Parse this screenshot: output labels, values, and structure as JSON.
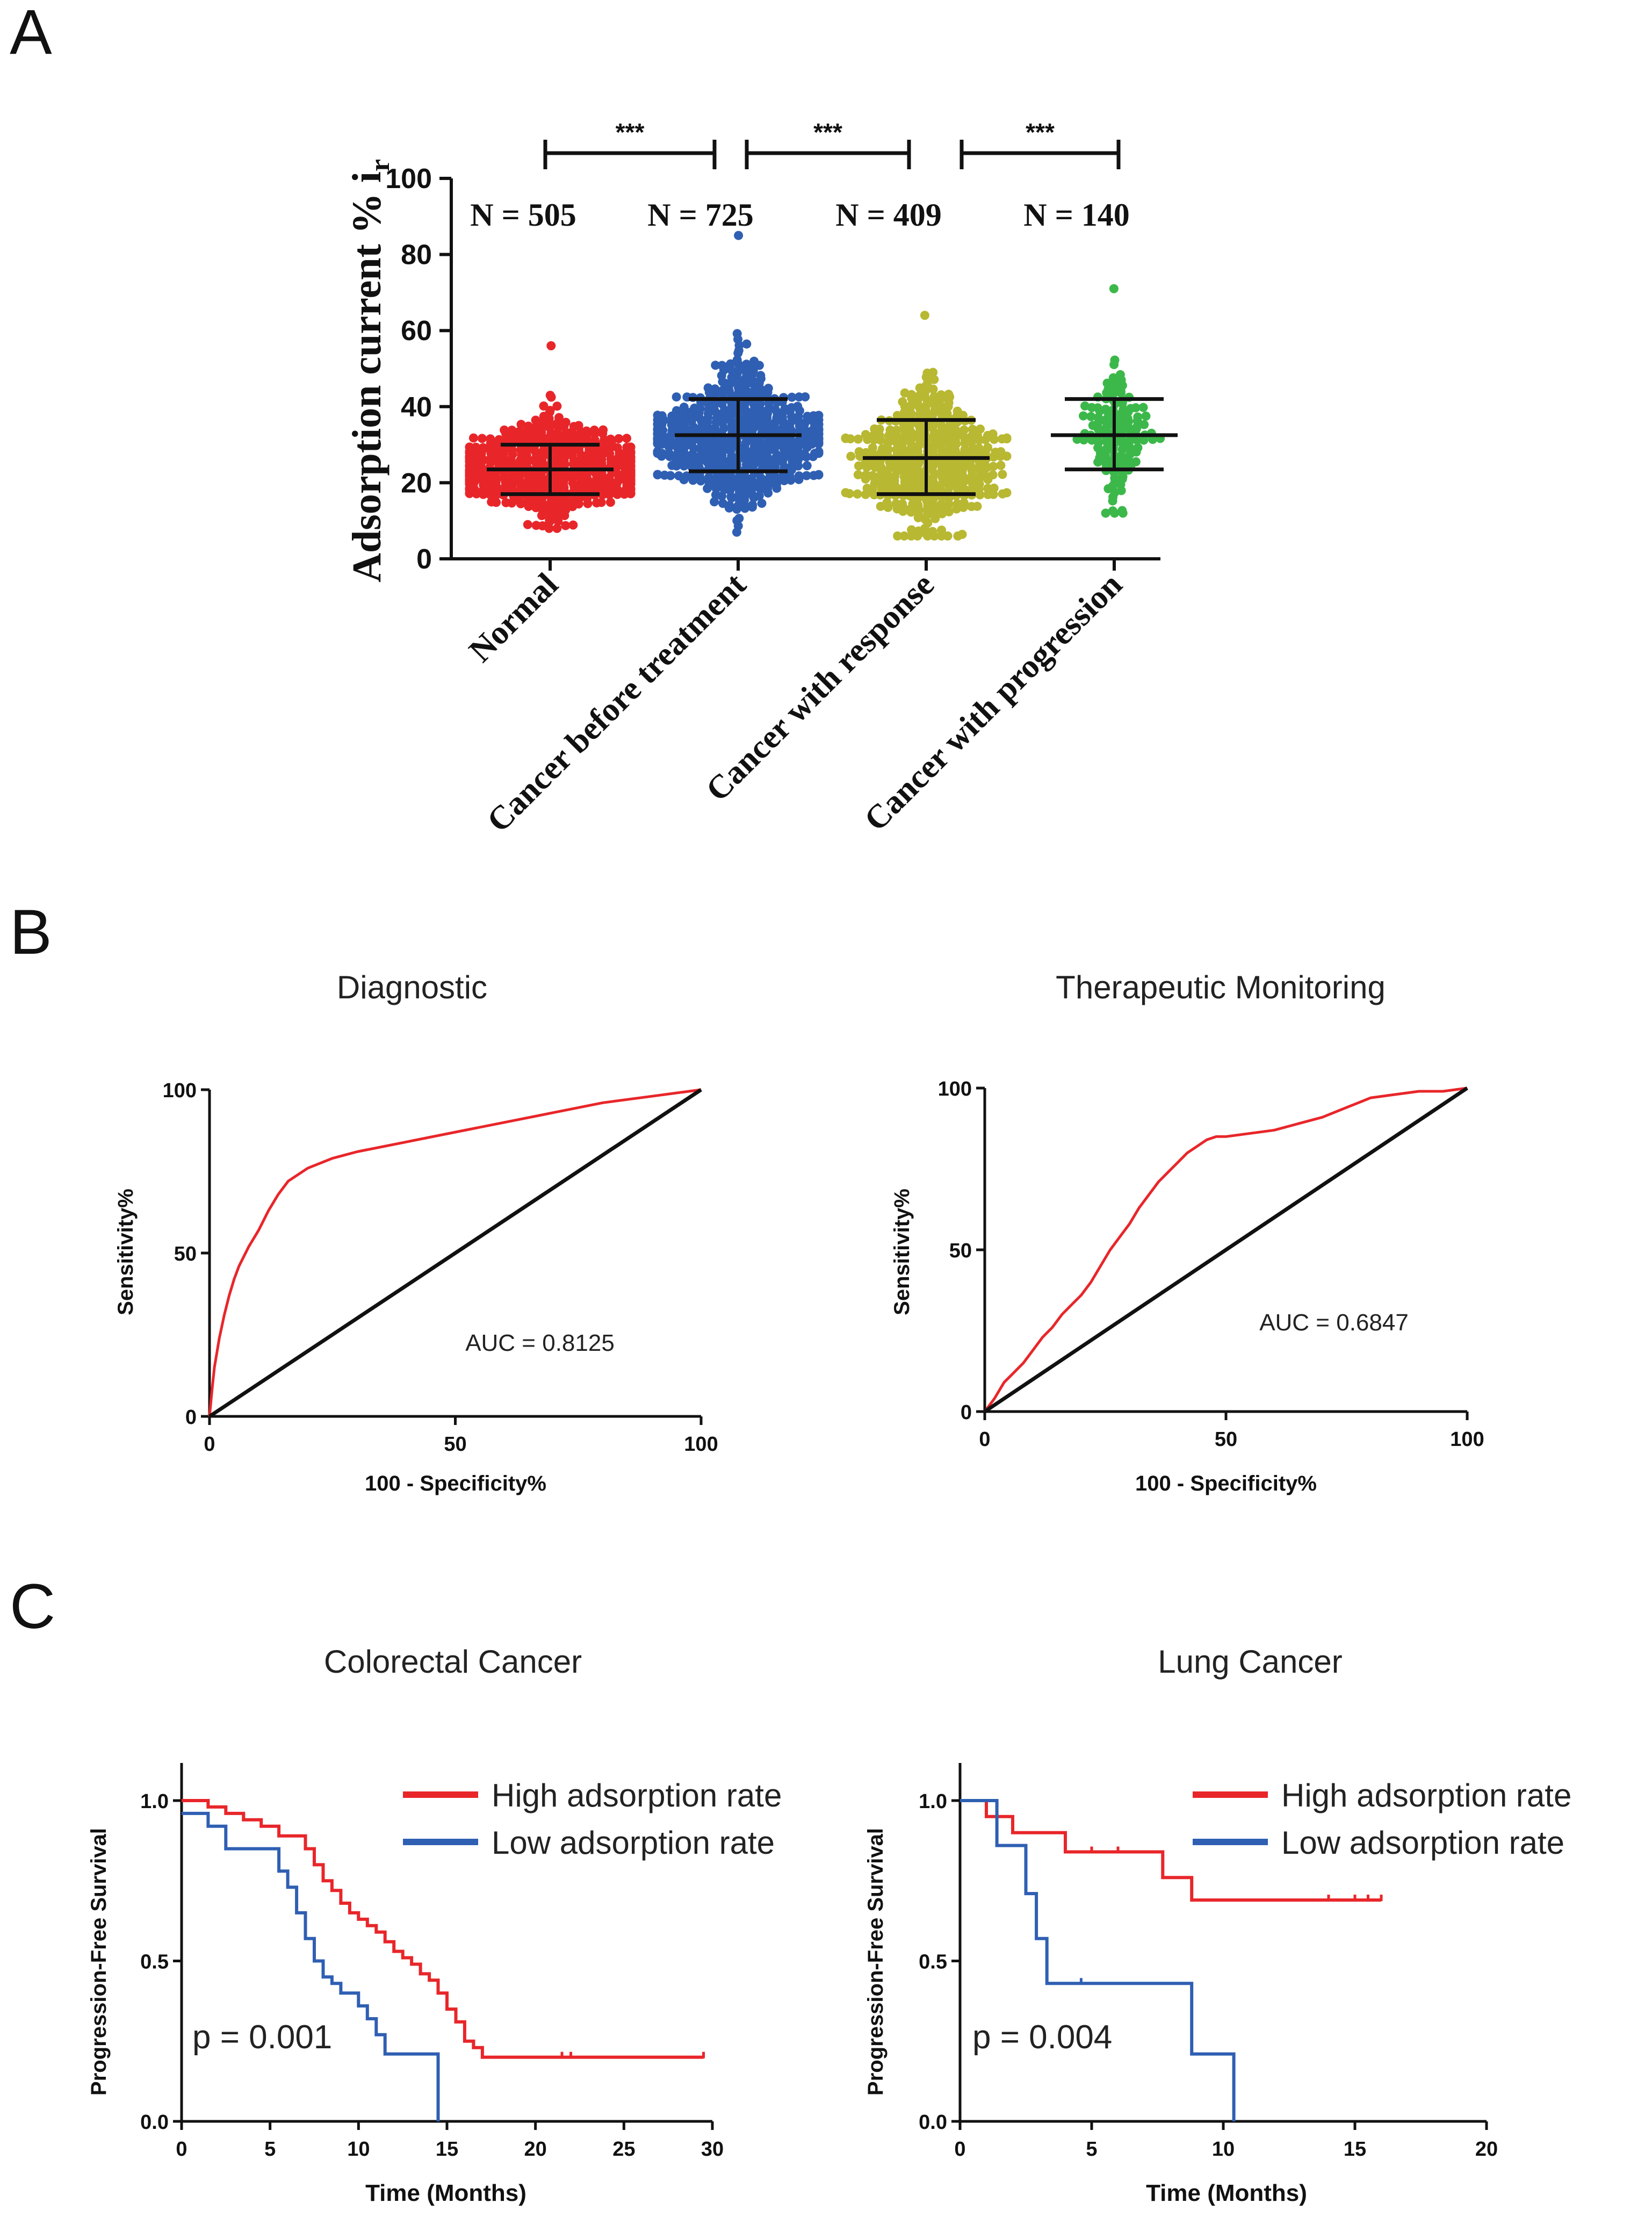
{
  "panel_labels": [
    "A",
    "B",
    "C"
  ],
  "chart_data": [
    {
      "panel": "A",
      "type": "scatter",
      "ylabel": "Adsorption current % i",
      "ylabel_sub": "r",
      "ylim": [
        0,
        100
      ],
      "yticks": [
        0,
        20,
        40,
        60,
        80,
        100
      ],
      "categories": [
        "Normal",
        "Cancer before treatment",
        "Cancer with response",
        "Cancer with progression"
      ],
      "counts": [
        "N = 505",
        "N = 725",
        "N = 409",
        "N = 140"
      ],
      "n": [
        505,
        725,
        409,
        140
      ],
      "mean": [
        23.5,
        32.5,
        26.5,
        32.5
      ],
      "sd_low": [
        17,
        23,
        17,
        23.5
      ],
      "sd_high": [
        30,
        42,
        36.5,
        42
      ],
      "min": [
        8,
        7,
        6,
        12
      ],
      "max": [
        56,
        85,
        64,
        71
      ],
      "colors": [
        "#e8262a",
        "#2f5fb3",
        "#b8b832",
        "#3cb84a"
      ],
      "significance": [
        {
          "from": 0,
          "to": 1,
          "label": "***"
        },
        {
          "from": 1,
          "to": 2,
          "label": "***"
        },
        {
          "from": 2,
          "to": 3,
          "label": "***"
        }
      ]
    },
    {
      "panel": "B",
      "type": "line",
      "title": "Diagnostic",
      "xlabel": "100 - Specificity%",
      "ylabel": "Sensitivity%",
      "xlim": [
        0,
        100
      ],
      "ylim": [
        0,
        100
      ],
      "ticks": [
        0,
        50,
        100
      ],
      "annotation": "AUC = 0.8125",
      "series": [
        {
          "name": "ROC",
          "color": "#e8262a",
          "x": [
            0,
            0.5,
            1,
            2,
            3,
            4,
            5,
            6,
            8,
            10,
            12,
            14,
            16,
            18,
            20,
            25,
            30,
            40,
            50,
            60,
            70,
            80,
            90,
            100
          ],
          "y": [
            0,
            8,
            15,
            24,
            31,
            37,
            42,
            46,
            52,
            57,
            63,
            68,
            72,
            74,
            76,
            79,
            81,
            84,
            87,
            90,
            93,
            96,
            98,
            100
          ]
        },
        {
          "name": "Reference",
          "color": "#111111",
          "x": [
            0,
            100
          ],
          "y": [
            0,
            100
          ]
        }
      ]
    },
    {
      "panel": "B",
      "type": "line",
      "title": "Therapeutic Monitoring",
      "xlabel": "100 - Specificity%",
      "ylabel": "Sensitivity%",
      "xlim": [
        0,
        100
      ],
      "ylim": [
        0,
        100
      ],
      "ticks": [
        0,
        50,
        100
      ],
      "annotation": "AUC = 0.6847",
      "series": [
        {
          "name": "ROC",
          "color": "#e8262a",
          "x": [
            0,
            2,
            4,
            6,
            8,
            10,
            12,
            14,
            16,
            18,
            20,
            22,
            24,
            26,
            28,
            30,
            32,
            34,
            36,
            38,
            40,
            42,
            44,
            46,
            48,
            50,
            55,
            60,
            65,
            70,
            75,
            80,
            85,
            90,
            95,
            100
          ],
          "y": [
            0,
            4,
            9,
            12,
            15,
            19,
            23,
            26,
            30,
            33,
            36,
            40,
            45,
            50,
            54,
            58,
            63,
            67,
            71,
            74,
            77,
            80,
            82,
            84,
            85,
            85,
            86,
            87,
            89,
            91,
            94,
            97,
            98,
            99,
            99,
            100
          ]
        },
        {
          "name": "Reference",
          "color": "#111111",
          "x": [
            0,
            100
          ],
          "y": [
            0,
            100
          ]
        }
      ]
    },
    {
      "panel": "C",
      "type": "line",
      "title": "Colorectal Cancer",
      "xlabel": "Time (Months)",
      "ylabel": "Progression-Free Survival",
      "xlim": [
        0,
        30
      ],
      "ylim": [
        0,
        1
      ],
      "xticks": [
        0,
        5,
        10,
        15,
        20,
        25,
        30
      ],
      "yticks": [
        "0.0",
        "0.5",
        "1.0"
      ],
      "annotation": "p = 0.001",
      "legend": [
        "High adsorption rate",
        "Low adsorption rate"
      ],
      "series": [
        {
          "name": "High adsorption rate",
          "color": "#e8262a",
          "x": [
            0,
            1.5,
            2.5,
            3.5,
            4.5,
            5.5,
            7,
            7.5,
            8,
            8.5,
            9,
            9.5,
            10,
            10.5,
            11,
            11.5,
            12,
            12.5,
            13,
            13.5,
            14,
            14.5,
            15,
            15.5,
            16,
            16.5,
            17,
            29.5
          ],
          "y": [
            1.0,
            0.98,
            0.96,
            0.94,
            0.92,
            0.89,
            0.85,
            0.8,
            0.75,
            0.72,
            0.68,
            0.65,
            0.63,
            0.61,
            0.59,
            0.56,
            0.53,
            0.51,
            0.49,
            0.46,
            0.44,
            0.4,
            0.35,
            0.31,
            0.25,
            0.23,
            0.2,
            0.2
          ],
          "censor_x": [
            21.5,
            22,
            29.5
          ]
        },
        {
          "name": "Low adsorption rate",
          "color": "#2f5fb3",
          "x": [
            0,
            1.5,
            2.5,
            5.5,
            6,
            6.5,
            7,
            7.5,
            8,
            8.5,
            9,
            10,
            10.5,
            11,
            11.5,
            12,
            14.5
          ],
          "y": [
            0.96,
            0.92,
            0.85,
            0.78,
            0.73,
            0.65,
            0.57,
            0.5,
            0.45,
            0.43,
            0.4,
            0.36,
            0.32,
            0.27,
            0.21,
            0.21,
            0.0
          ],
          "censor_x": []
        }
      ]
    },
    {
      "panel": "C",
      "type": "line",
      "title": "Lung Cancer",
      "xlabel": "Time (Months)",
      "ylabel": "Progression-Free Survival",
      "xlim": [
        0,
        20
      ],
      "ylim": [
        0,
        1
      ],
      "xticks": [
        0,
        5,
        10,
        15,
        20
      ],
      "yticks": [
        "0.0",
        "0.5",
        "1.0"
      ],
      "annotation": "p = 0.004",
      "legend": [
        "High adsorption rate",
        "Low adsorption rate"
      ],
      "series": [
        {
          "name": "High adsorption rate",
          "color": "#e8262a",
          "x": [
            0,
            1,
            2,
            4,
            6.5,
            7.7,
            8.8,
            16
          ],
          "y": [
            1.0,
            0.95,
            0.9,
            0.84,
            0.84,
            0.76,
            0.69,
            0.69
          ],
          "censor_x": [
            5,
            6,
            14,
            15,
            15.5,
            16
          ]
        },
        {
          "name": "Low adsorption rate",
          "color": "#2f5fb3",
          "x": [
            0,
            1.4,
            2.5,
            2.9,
            3.3,
            8.8,
            10.4
          ],
          "y": [
            1.0,
            0.86,
            0.71,
            0.57,
            0.43,
            0.21,
            0.0
          ],
          "censor_x": [
            4.6
          ]
        }
      ]
    }
  ]
}
